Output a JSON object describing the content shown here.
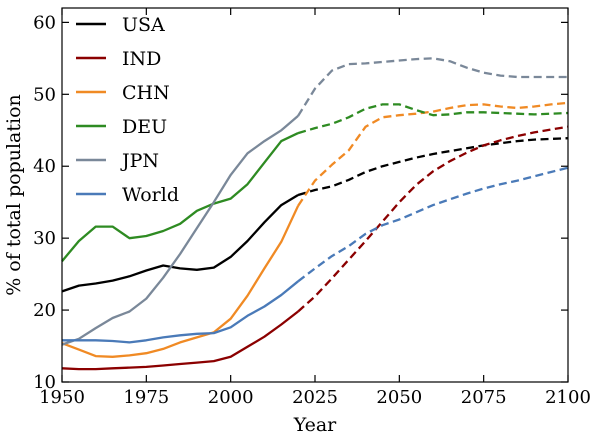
{
  "chart_data": {
    "type": "line",
    "title": "",
    "xlabel": "Year",
    "ylabel": "% of total population",
    "xlim": [
      1950,
      2100
    ],
    "ylim": [
      10,
      62
    ],
    "xticks": [
      1950,
      1975,
      2000,
      2025,
      2050,
      2075,
      2100
    ],
    "yticks": [
      10,
      20,
      30,
      40,
      50,
      60
    ],
    "grid": false,
    "legend_position": "upper-left",
    "observed_until": 2020,
    "style_note_solid": "solid = observed",
    "style_note_dashed": "dashed = projected",
    "series": [
      {
        "name": "USA",
        "color": "#000000",
        "x": [
          1950,
          1955,
          1960,
          1965,
          1970,
          1975,
          1980,
          1985,
          1990,
          1995,
          2000,
          2005,
          2010,
          2015,
          2020,
          2025,
          2030,
          2035,
          2040,
          2045,
          2050,
          2055,
          2060,
          2065,
          2070,
          2075,
          2080,
          2085,
          2090,
          2095,
          2100
        ],
        "y": [
          22.6,
          23.4,
          23.7,
          24.1,
          24.7,
          25.5,
          26.2,
          25.8,
          25.6,
          25.9,
          27.4,
          29.6,
          32.2,
          34.6,
          36.0,
          36.7,
          37.2,
          38.1,
          39.2,
          40.0,
          40.6,
          41.2,
          41.7,
          42.1,
          42.5,
          42.9,
          43.2,
          43.5,
          43.7,
          43.8,
          43.9
        ]
      },
      {
        "name": "IND",
        "color": "#8b0000",
        "x": [
          1950,
          1955,
          1960,
          1965,
          1970,
          1975,
          1980,
          1985,
          1990,
          1995,
          2000,
          2005,
          2010,
          2015,
          2020,
          2025,
          2030,
          2035,
          2040,
          2045,
          2050,
          2055,
          2060,
          2065,
          2070,
          2075,
          2080,
          2085,
          2090,
          2095,
          2100
        ],
        "y": [
          11.9,
          11.8,
          11.8,
          11.9,
          12.0,
          12.1,
          12.3,
          12.5,
          12.7,
          12.9,
          13.5,
          14.9,
          16.3,
          18.0,
          19.8,
          21.9,
          24.4,
          27.0,
          29.6,
          32.3,
          35.0,
          37.4,
          39.3,
          40.7,
          41.9,
          42.9,
          43.6,
          44.2,
          44.7,
          45.1,
          45.5
        ]
      },
      {
        "name": "CHN",
        "color": "#f08a24",
        "x": [
          1950,
          1955,
          1960,
          1965,
          1970,
          1975,
          1980,
          1985,
          1990,
          1995,
          2000,
          2005,
          2010,
          2015,
          2020,
          2025,
          2030,
          2035,
          2040,
          2045,
          2050,
          2055,
          2060,
          2065,
          2070,
          2075,
          2080,
          2085,
          2090,
          2095,
          2100
        ],
        "y": [
          15.4,
          14.5,
          13.6,
          13.5,
          13.7,
          14.0,
          14.6,
          15.5,
          16.2,
          16.9,
          18.8,
          22.0,
          25.8,
          29.5,
          34.5,
          38.0,
          40.2,
          42.2,
          45.5,
          46.8,
          47.1,
          47.3,
          47.6,
          48.1,
          48.5,
          48.6,
          48.3,
          48.1,
          48.3,
          48.6,
          48.8
        ]
      },
      {
        "name": "DEU",
        "color": "#2e8b22",
        "x": [
          1950,
          1955,
          1960,
          1965,
          1970,
          1975,
          1980,
          1985,
          1990,
          1995,
          2000,
          2005,
          2010,
          2015,
          2020,
          2025,
          2030,
          2035,
          2040,
          2045,
          2050,
          2055,
          2060,
          2065,
          2070,
          2075,
          2080,
          2085,
          2090,
          2095,
          2100
        ],
        "y": [
          26.8,
          29.6,
          31.6,
          31.6,
          30.0,
          30.3,
          31.0,
          32.0,
          33.8,
          34.8,
          35.5,
          37.5,
          40.5,
          43.5,
          44.6,
          45.3,
          45.9,
          46.8,
          48.0,
          48.6,
          48.6,
          47.8,
          47.1,
          47.2,
          47.5,
          47.5,
          47.4,
          47.3,
          47.2,
          47.3,
          47.4
        ]
      },
      {
        "name": "JPN",
        "color": "#7a8899",
        "x": [
          1950,
          1955,
          1960,
          1965,
          1970,
          1975,
          1980,
          1985,
          1990,
          1995,
          2000,
          2005,
          2010,
          2015,
          2020,
          2025,
          2030,
          2035,
          2040,
          2045,
          2050,
          2055,
          2060,
          2065,
          2070,
          2075,
          2080,
          2085,
          2090,
          2095,
          2100
        ],
        "y": [
          15.2,
          16.0,
          17.5,
          18.9,
          19.8,
          21.6,
          24.5,
          27.8,
          31.4,
          35.0,
          38.8,
          41.8,
          43.5,
          45.0,
          47.0,
          50.8,
          53.3,
          54.2,
          54.3,
          54.5,
          54.7,
          54.9,
          55.0,
          54.6,
          53.7,
          53.0,
          52.6,
          52.4,
          52.4,
          52.4,
          52.4
        ]
      },
      {
        "name": "World",
        "color": "#4a7ab8",
        "x": [
          1950,
          1955,
          1960,
          1965,
          1970,
          1975,
          1980,
          1985,
          1990,
          1995,
          2000,
          2005,
          2010,
          2015,
          2020,
          2025,
          2030,
          2035,
          2040,
          2045,
          2050,
          2055,
          2060,
          2065,
          2070,
          2075,
          2080,
          2085,
          2090,
          2095,
          2100
        ],
        "y": [
          15.8,
          15.8,
          15.8,
          15.7,
          15.5,
          15.8,
          16.2,
          16.5,
          16.7,
          16.8,
          17.6,
          19.2,
          20.5,
          22.1,
          24.0,
          25.8,
          27.5,
          28.9,
          30.6,
          31.8,
          32.6,
          33.6,
          34.6,
          35.4,
          36.2,
          36.9,
          37.5,
          38.0,
          38.6,
          39.2,
          39.8
        ]
      }
    ]
  }
}
